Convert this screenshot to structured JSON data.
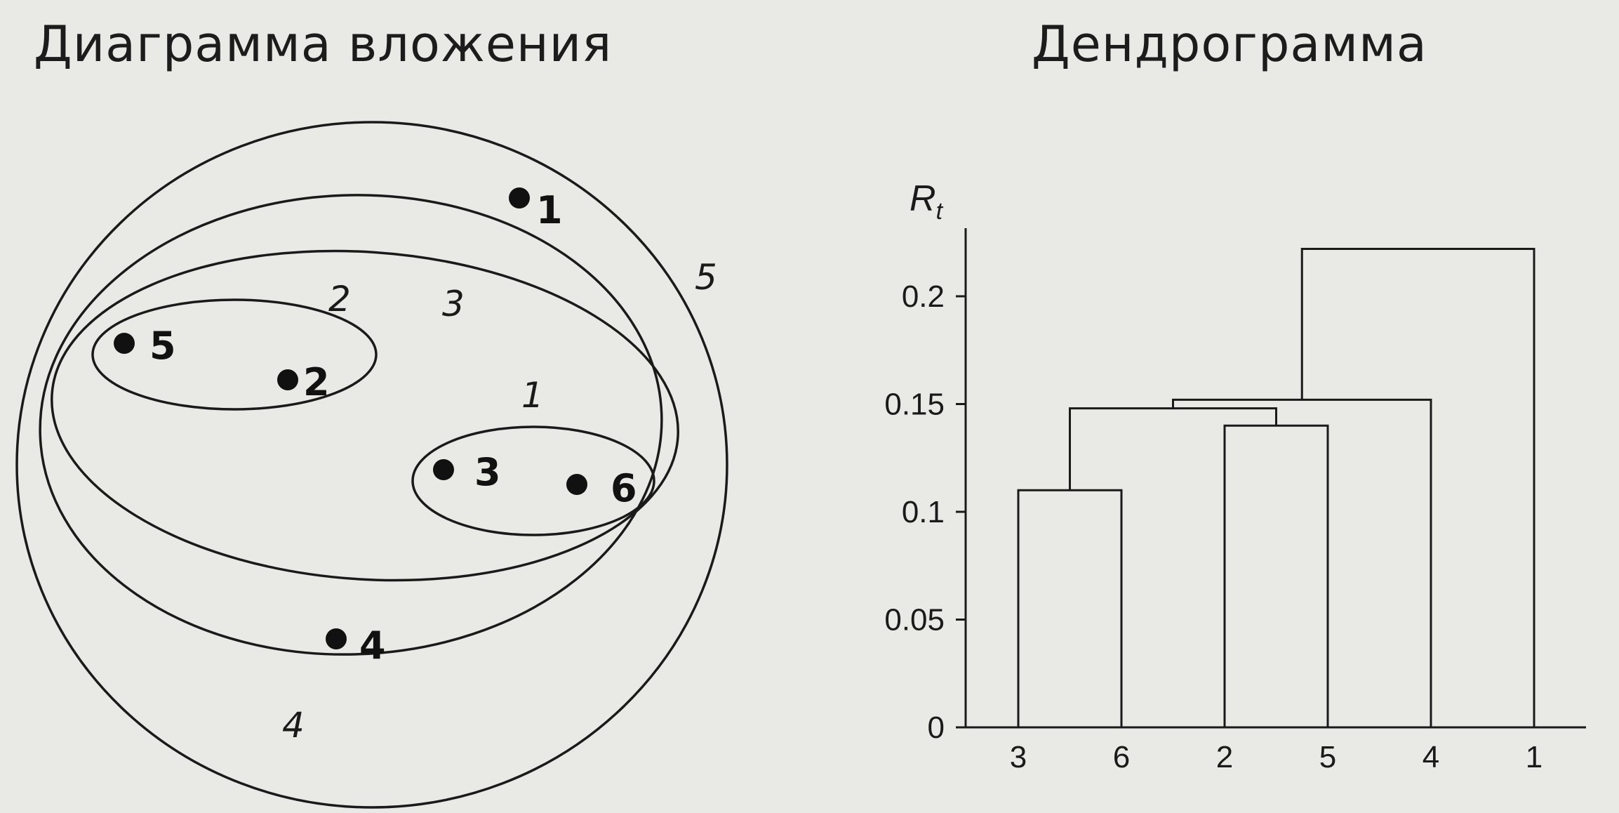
{
  "left_panel": {
    "title": "Диаграмма вложения",
    "points": [
      {
        "id": "1",
        "label": "1"
      },
      {
        "id": "2",
        "label": "2"
      },
      {
        "id": "3",
        "label": "3"
      },
      {
        "id": "4",
        "label": "4"
      },
      {
        "id": "5",
        "label": "5"
      },
      {
        "id": "6",
        "label": "6"
      }
    ],
    "set_labels": [
      "1",
      "2",
      "3",
      "4",
      "5"
    ]
  },
  "right_panel": {
    "title": "Дендрограмма"
  },
  "chart_data": {
    "type": "dendrogram",
    "title": "Дендрограмма",
    "ylabel_main": "R",
    "ylabel_sub": "t",
    "ylim": [
      0,
      0.225
    ],
    "yticks": [
      "0",
      "0.05",
      "0.1",
      "0.15",
      "0.2"
    ],
    "ytick_values": [
      0,
      0.05,
      0.1,
      0.15,
      0.2
    ],
    "leaves": [
      "3",
      "6",
      "2",
      "5",
      "4",
      "1"
    ],
    "merges": [
      {
        "left": "3",
        "right": "6",
        "height": 0.11
      },
      {
        "left": "2",
        "right": "5",
        "height": 0.14
      },
      {
        "left": "{3,6}",
        "right": "{2,5}",
        "height": 0.148
      },
      {
        "left": "{3,6,2,5}",
        "right": "4",
        "height": 0.152
      },
      {
        "left": "{3,6,2,5,4}",
        "right": "1",
        "height": 0.222
      }
    ]
  }
}
